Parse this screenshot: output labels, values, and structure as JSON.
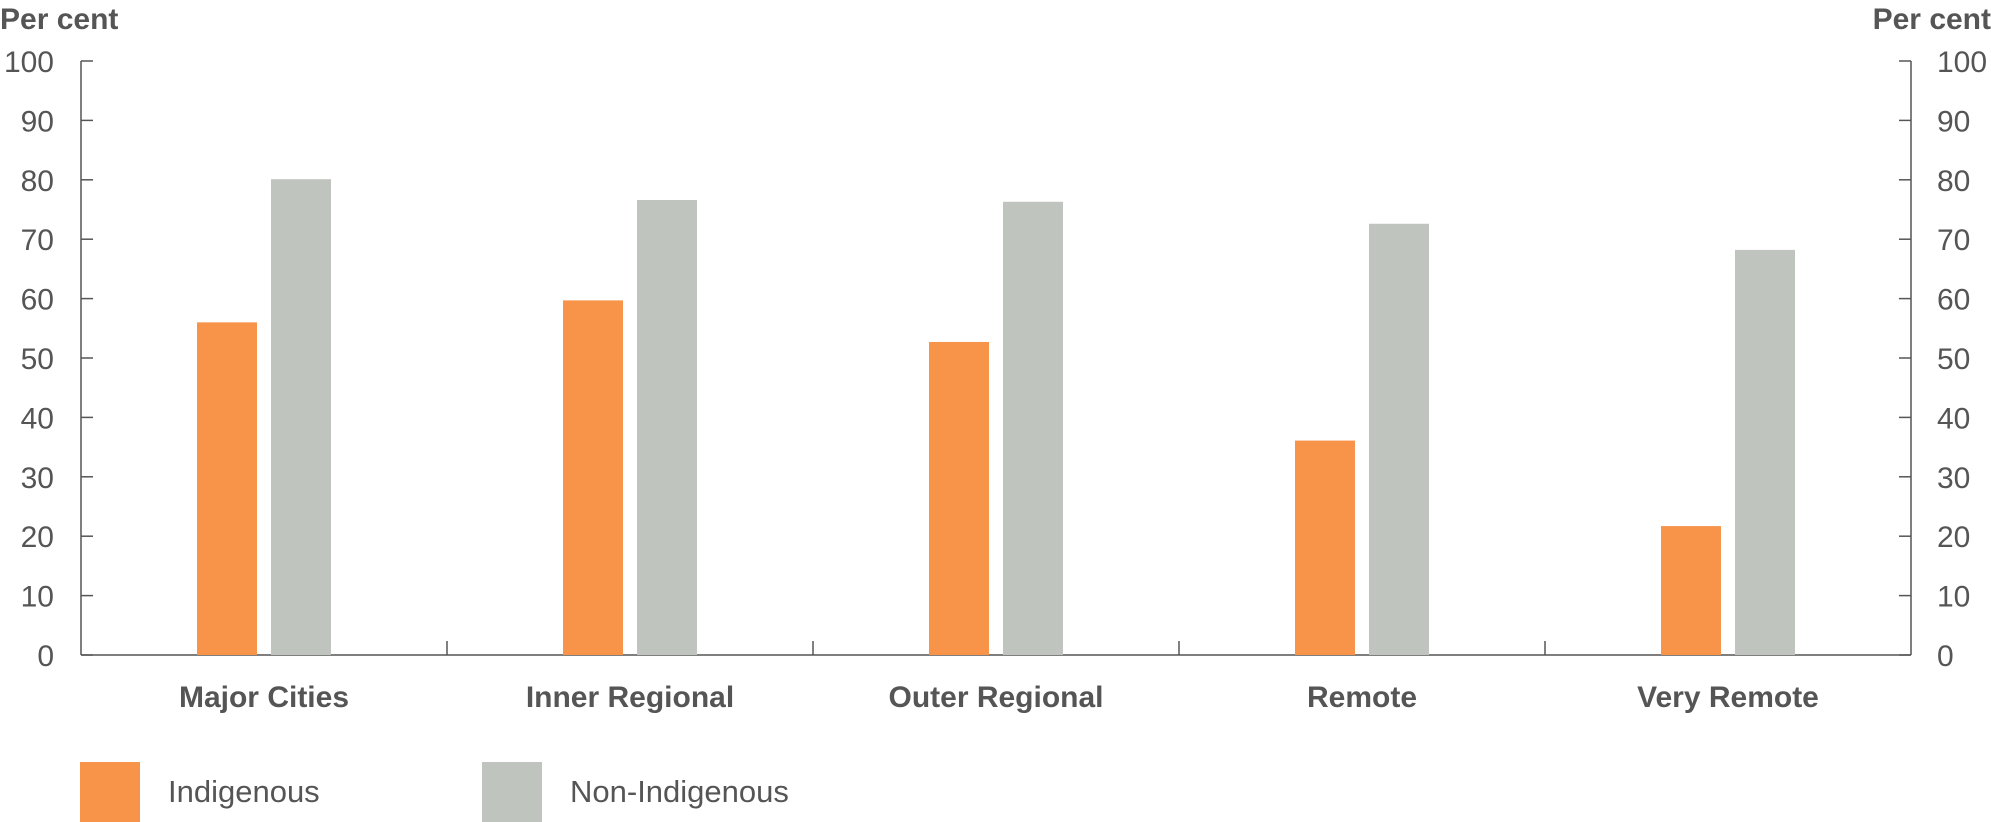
{
  "chart_data": {
    "type": "bar",
    "categories": [
      "Major Cities",
      "Inner Regional",
      "Outer  Regional",
      "Remote",
      "Very Remote"
    ],
    "series": [
      {
        "name": "Indigenous",
        "color": "#F7944A",
        "values": [
          56,
          59.7,
          52.7,
          36.1,
          21.7
        ]
      },
      {
        "name": "Non-Indigenous",
        "color": "#C0C4BE",
        "values": [
          80.1,
          76.6,
          76.3,
          72.6,
          68.2
        ]
      }
    ],
    "ylabel_left": "Per cent",
    "ylabel_right": "Per cent",
    "ylim": [
      0,
      100
    ],
    "yticks": [
      0,
      10,
      20,
      30,
      40,
      50,
      60,
      70,
      80,
      90,
      100
    ],
    "ytick_labels": [
      "0",
      "10",
      "20",
      "30",
      "40",
      "50",
      "60",
      "70",
      "80",
      "90",
      "100"
    ],
    "dual_axis": true,
    "grid": false,
    "legend_position": "bottom-left"
  }
}
